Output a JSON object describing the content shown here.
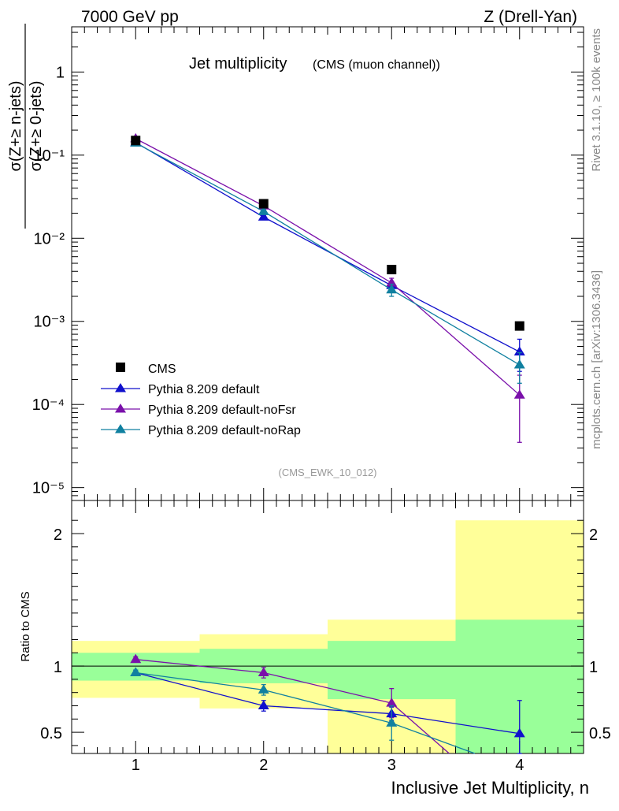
{
  "header": {
    "left": "7000 GeV pp",
    "right": "Z (Drell-Yan)"
  },
  "side_labels": {
    "rivet": "Rivet 3.1.10, ≥ 100k events",
    "mcplots": "mcplots.cern.ch [arXiv:1306.3436]"
  },
  "chart_data": [
    {
      "type": "scatter",
      "title_main": "Jet multiplicity",
      "title_sub": "(CMS (muon channel))",
      "annotation": "(CMS_EWK_10_012)",
      "ylabel_num": "σ(Z+≥ n-jets)",
      "ylabel_den": "σ(Z+≥ 0-jets)",
      "yscale": "log",
      "ylim": [
        7e-06,
        3.5
      ],
      "xlim": [
        0.5,
        4.5
      ],
      "y_tick_labels": [
        "1",
        "10⁻¹",
        "10⁻²",
        "10⁻³",
        "10⁻⁴",
        "10⁻⁵"
      ],
      "legend_position": "bottom-left",
      "series": [
        {
          "name": "CMS",
          "color": "#000000",
          "marker": "square",
          "x": [
            1,
            2,
            3,
            4
          ],
          "y": [
            0.15,
            0.026,
            0.0042,
            0.00088
          ]
        },
        {
          "name": "Pythia 8.209 default",
          "color": "#1010cc",
          "marker": "triangle",
          "x": [
            1,
            2,
            3,
            4
          ],
          "y": [
            0.142,
            0.018,
            0.0027,
            0.00043
          ],
          "yerr": [
            0.004,
            0.001,
            0.0003,
            0.00018
          ]
        },
        {
          "name": "Pythia 8.209 default-noFsr",
          "color": "#7a10aa",
          "marker": "triangle",
          "x": [
            1,
            2,
            3,
            4
          ],
          "y": [
            0.158,
            0.0245,
            0.0029,
            0.00013
          ],
          "yerr": [
            0.004,
            0.0012,
            0.0004,
            9.5e-05
          ]
        },
        {
          "name": "Pythia 8.209 default-noRap",
          "color": "#1080a0",
          "marker": "triangle",
          "x": [
            1,
            2,
            3,
            4
          ],
          "y": [
            0.14,
            0.021,
            0.0024,
            0.0003
          ],
          "yerr": [
            0.004,
            0.001,
            0.0004,
            0.00012
          ]
        }
      ]
    },
    {
      "type": "line",
      "ylabel": "Ratio to CMS",
      "xlabel": "Inclusive Jet Multiplicity, n",
      "ylim": [
        0.34,
        2.25
      ],
      "xlim": [
        0.5,
        4.5
      ],
      "x_ticks": [
        1,
        2,
        3,
        4
      ],
      "y_ticks": [
        0.5,
        1,
        2
      ],
      "bands": [
        {
          "x0": 0.5,
          "x1": 1.5,
          "green": [
            0.89,
            1.1
          ],
          "yellow": [
            0.76,
            1.19
          ]
        },
        {
          "x0": 1.5,
          "x1": 2.5,
          "green": [
            0.87,
            1.13
          ],
          "yellow": [
            0.68,
            1.24
          ]
        },
        {
          "x0": 2.5,
          "x1": 3.5,
          "green": [
            0.75,
            1.19
          ],
          "yellow": [
            0.34,
            1.35
          ]
        },
        {
          "x0": 3.5,
          "x1": 4.5,
          "green": [
            0.34,
            1.35
          ],
          "yellow": [
            0.34,
            2.1
          ]
        }
      ],
      "series": [
        {
          "name": "Pythia 8.209 default",
          "color": "#1010cc",
          "x": [
            1,
            2,
            3,
            4
          ],
          "y": [
            0.95,
            0.7,
            0.64,
            0.49
          ],
          "yerr": [
            0.02,
            0.04,
            0.05,
            0.25
          ]
        },
        {
          "name": "Pythia 8.209 default-noFsr",
          "color": "#7a10aa",
          "x": [
            1,
            2,
            3,
            3.45
          ],
          "y": [
            1.05,
            0.95,
            0.72,
            0.34
          ],
          "yerr": [
            0.02,
            0.04,
            0.11,
            0
          ],
          "markers": 3
        },
        {
          "name": "Pythia 8.209 default-noRap",
          "color": "#1080a0",
          "x": [
            1,
            2,
            3,
            3.65
          ],
          "y": [
            0.95,
            0.82,
            0.57,
            0.34
          ],
          "yerr": [
            0.02,
            0.04,
            0.13,
            0
          ],
          "markers": 3
        }
      ]
    }
  ]
}
